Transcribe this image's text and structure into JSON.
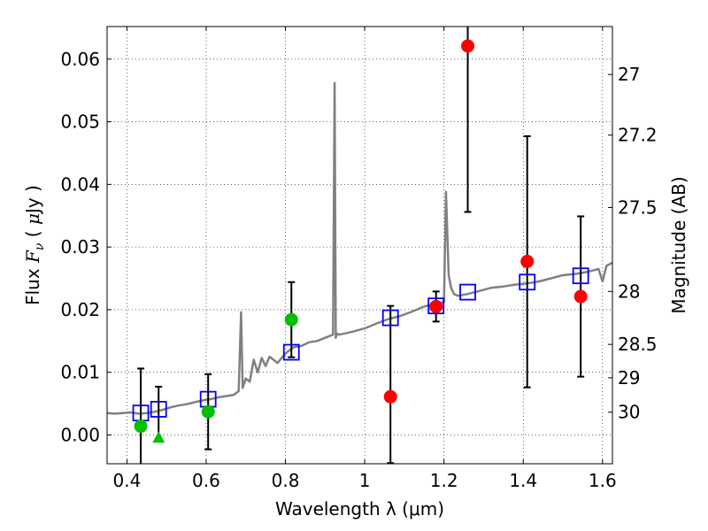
{
  "chart_data": {
    "type": "scatter",
    "xlabel": "Wavelength  λ (μm)",
    "ylabel": "Flux  F_ν  ( μJy )",
    "ylabel_parts": {
      "prefix": "Flux  ",
      "symbol": "F",
      "subscript": "ν",
      "unit_open": "  ( ",
      "unit_mu": "μ",
      "unit_rest": "Jy )"
    },
    "y2label": "Magnitude (AB)",
    "xlim": [
      0.35,
      1.625
    ],
    "ylim": [
      -0.0046,
      0.0652
    ],
    "grid": true,
    "x_ticks": [
      {
        "value": 0.4,
        "label": "0.4"
      },
      {
        "value": 0.6,
        "label": "0.6"
      },
      {
        "value": 0.8,
        "label": "0.8"
      },
      {
        "value": 1.0,
        "label": "1"
      },
      {
        "value": 1.2,
        "label": "1.2"
      },
      {
        "value": 1.4,
        "label": "1.4"
      },
      {
        "value": 1.6,
        "label": "1.6"
      }
    ],
    "y_ticks": [
      {
        "value": 0.0,
        "label": "0.00"
      },
      {
        "value": 0.01,
        "label": "0.01"
      },
      {
        "value": 0.02,
        "label": "0.02"
      },
      {
        "value": 0.03,
        "label": "0.03"
      },
      {
        "value": 0.04,
        "label": "0.04"
      },
      {
        "value": 0.05,
        "label": "0.05"
      },
      {
        "value": 0.06,
        "label": "0.06"
      }
    ],
    "y2_ticks": [
      {
        "mag": 27,
        "label": "27"
      },
      {
        "mag": 27.2,
        "label": "27.2"
      },
      {
        "mag": 27.5,
        "label": "27.5"
      },
      {
        "mag": 28,
        "label": "28"
      },
      {
        "mag": 28.5,
        "label": "28.5"
      },
      {
        "mag": 29,
        "label": "29"
      },
      {
        "mag": 30,
        "label": "30"
      }
    ],
    "spectrum": {
      "name": "model-spectrum",
      "color": "#808080",
      "x": [
        0.35,
        0.37,
        0.39,
        0.41,
        0.43,
        0.45,
        0.47,
        0.49,
        0.51,
        0.53,
        0.55,
        0.57,
        0.59,
        0.61,
        0.63,
        0.65,
        0.67,
        0.682,
        0.688,
        0.692,
        0.7,
        0.71,
        0.72,
        0.73,
        0.74,
        0.75,
        0.76,
        0.78,
        0.8,
        0.82,
        0.84,
        0.86,
        0.88,
        0.9,
        0.92,
        0.924,
        0.927,
        0.93,
        0.935,
        0.95,
        0.97,
        1.0,
        1.03,
        1.06,
        1.09,
        1.12,
        1.15,
        1.18,
        1.2,
        1.205,
        1.212,
        1.218,
        1.225,
        1.235,
        1.26,
        1.29,
        1.32,
        1.35,
        1.38,
        1.41,
        1.44,
        1.47,
        1.5,
        1.53,
        1.56,
        1.59,
        1.6,
        1.61,
        1.625
      ],
      "y": [
        0.0035,
        0.0034,
        0.0035,
        0.0036,
        0.0034,
        0.0035,
        0.0037,
        0.004,
        0.0044,
        0.0047,
        0.0049,
        0.0052,
        0.0055,
        0.0057,
        0.006,
        0.0062,
        0.0064,
        0.007,
        0.0196,
        0.0075,
        0.009,
        0.0085,
        0.012,
        0.01,
        0.0123,
        0.011,
        0.0125,
        0.0115,
        0.013,
        0.014,
        0.0142,
        0.0148,
        0.015,
        0.0155,
        0.016,
        0.0562,
        0.0155,
        0.0162,
        0.016,
        0.0162,
        0.0165,
        0.017,
        0.0178,
        0.0185,
        0.019,
        0.0197,
        0.0205,
        0.021,
        0.0212,
        0.0388,
        0.0255,
        0.0235,
        0.0225,
        0.0222,
        0.0225,
        0.023,
        0.0235,
        0.0237,
        0.024,
        0.0242,
        0.0245,
        0.025,
        0.0255,
        0.0257,
        0.026,
        0.0265,
        0.0245,
        0.027,
        0.0275
      ]
    },
    "series": [
      {
        "name": "model-photometry",
        "marker": "open-square",
        "color": "#0000ff",
        "x": [
          0.435,
          0.48,
          0.605,
          0.815,
          1.065,
          1.18,
          1.26,
          1.41,
          1.545
        ],
        "y": [
          0.0035,
          0.0041,
          0.0057,
          0.0132,
          0.0187,
          0.0206,
          0.0228,
          0.0244,
          0.0254
        ]
      },
      {
        "name": "optical-detections",
        "marker": "filled-circle",
        "color": "#00c000",
        "x": [
          0.435,
          0.605,
          0.815
        ],
        "y": [
          0.0014,
          0.0037,
          0.0184
        ],
        "yerr_low": [
          0.0063,
          0.006,
          0.006
        ],
        "yerr_high": [
          0.0092,
          0.006,
          0.006
        ]
      },
      {
        "name": "upper-limit",
        "marker": "filled-triangle",
        "color": "#00c000",
        "x": [
          0.48
        ],
        "y": [
          -0.0004
        ],
        "yerr_low": [
          0.0
        ],
        "yerr_high": [
          0.0081
        ]
      },
      {
        "name": "nir-detections",
        "marker": "filled-circle",
        "color": "#ff0000",
        "x": [
          1.065,
          1.18,
          1.26,
          1.41,
          1.545
        ],
        "y": [
          0.0061,
          0.0205,
          0.0621,
          0.0277,
          0.0221
        ],
        "yerr_low": [
          0.0106,
          0.0024,
          0.0265,
          0.0201,
          0.0128
        ],
        "yerr_high": [
          0.0145,
          0.0024,
          0.02,
          0.02,
          0.0128
        ]
      }
    ]
  }
}
